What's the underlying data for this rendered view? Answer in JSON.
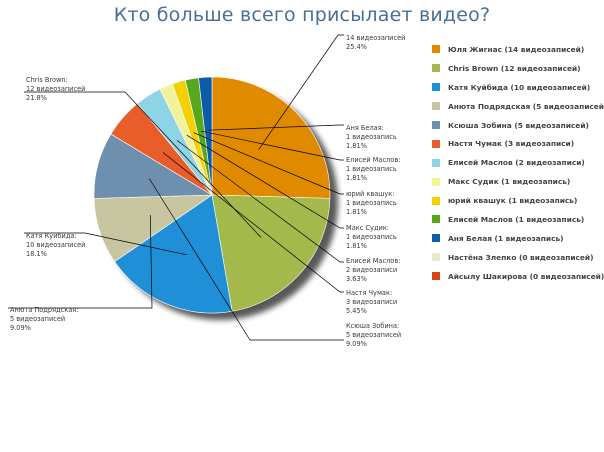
{
  "chart_data": {
    "type": "pie",
    "title": "Кто больше всего присылает видео?",
    "legend_position": "right",
    "slices": [
      {
        "name": "Юля Жигнас (14 видеозаписей)",
        "value": 14,
        "percent": "25.4%",
        "callout": [
          "14 видеозаписей",
          "25.4%"
        ],
        "color": "#e08a00"
      },
      {
        "name": "Chris Brown (12 видеозаписей)",
        "value": 12,
        "percent": "21.8%",
        "callout": [
          "Chris Brown:",
          "12 видеозаписей",
          "21.8%"
        ],
        "color": "#a3b94b"
      },
      {
        "name": "Катя Куйбида (10 видеозаписей)",
        "value": 10,
        "percent": "18.1%",
        "callout": [
          "Катя Куйбида:",
          "10 видеозаписей",
          "18.1%"
        ],
        "color": "#1f8fd8"
      },
      {
        "name": "Анюта Подрядская (5 видеозаписей)",
        "value": 5,
        "percent": "9.09%",
        "callout": [
          "Анюта Подрядская:",
          "5 видеозаписей",
          "9.09%"
        ],
        "color": "#c8c6a0"
      },
      {
        "name": "Ксюша Зобина (5 видеозаписей)",
        "value": 5,
        "percent": "9.09%",
        "callout": [
          "Ксюша Зобина:",
          "5 видеозаписей",
          "9.09%"
        ],
        "color": "#6e8fad"
      },
      {
        "name": "Настя Чумак (3 видеозаписи)",
        "value": 3,
        "percent": "5.45%",
        "callout": [
          "Настя Чумак:",
          "3 видеозаписи",
          "5.45%"
        ],
        "color": "#e85d2a"
      },
      {
        "name": "Елисей Маслов (2 видеозаписи)",
        "value": 2,
        "percent": "3.63%",
        "callout": [
          "Елисей Маслов:",
          "2 видеозаписи",
          "3.63%"
        ],
        "color": "#8fd3e6"
      },
      {
        "name": "Макс Судик (1 видеозапись)",
        "value": 1,
        "percent": "1.81%",
        "callout": [
          "Макс Судик:",
          "1 видеозапись",
          "1.81%"
        ],
        "color": "#f2f29a"
      },
      {
        "name": "юрий квашук (1 видеозапись)",
        "value": 1,
        "percent": "1.81%",
        "callout": [
          "юрий квашук:",
          "1 видеозапись",
          "1.81%"
        ],
        "color": "#f5d000"
      },
      {
        "name": "Елисей Маслов (1 видеозапись)",
        "value": 1,
        "percent": "1.81%",
        "callout": [
          "Елисей Маслов:",
          "1 видеозапись",
          "1.81%"
        ],
        "color": "#58a81e"
      },
      {
        "name": "Аня Белая (1 видеозапись)",
        "value": 1,
        "percent": "1.81%",
        "callout": [
          "Аня Белая:",
          "1 видеозапись",
          "1.81%"
        ],
        "color": "#0d5ca8"
      },
      {
        "name": "Настёна Злепко (0 видеозаписей)",
        "value": 0,
        "percent": "",
        "callout": [],
        "color": "#ede8c8"
      },
      {
        "name": "Айсылу Шакирова (0 видеозаписей)",
        "value": 0,
        "percent": "",
        "callout": [],
        "color": "#d9441a"
      }
    ]
  }
}
